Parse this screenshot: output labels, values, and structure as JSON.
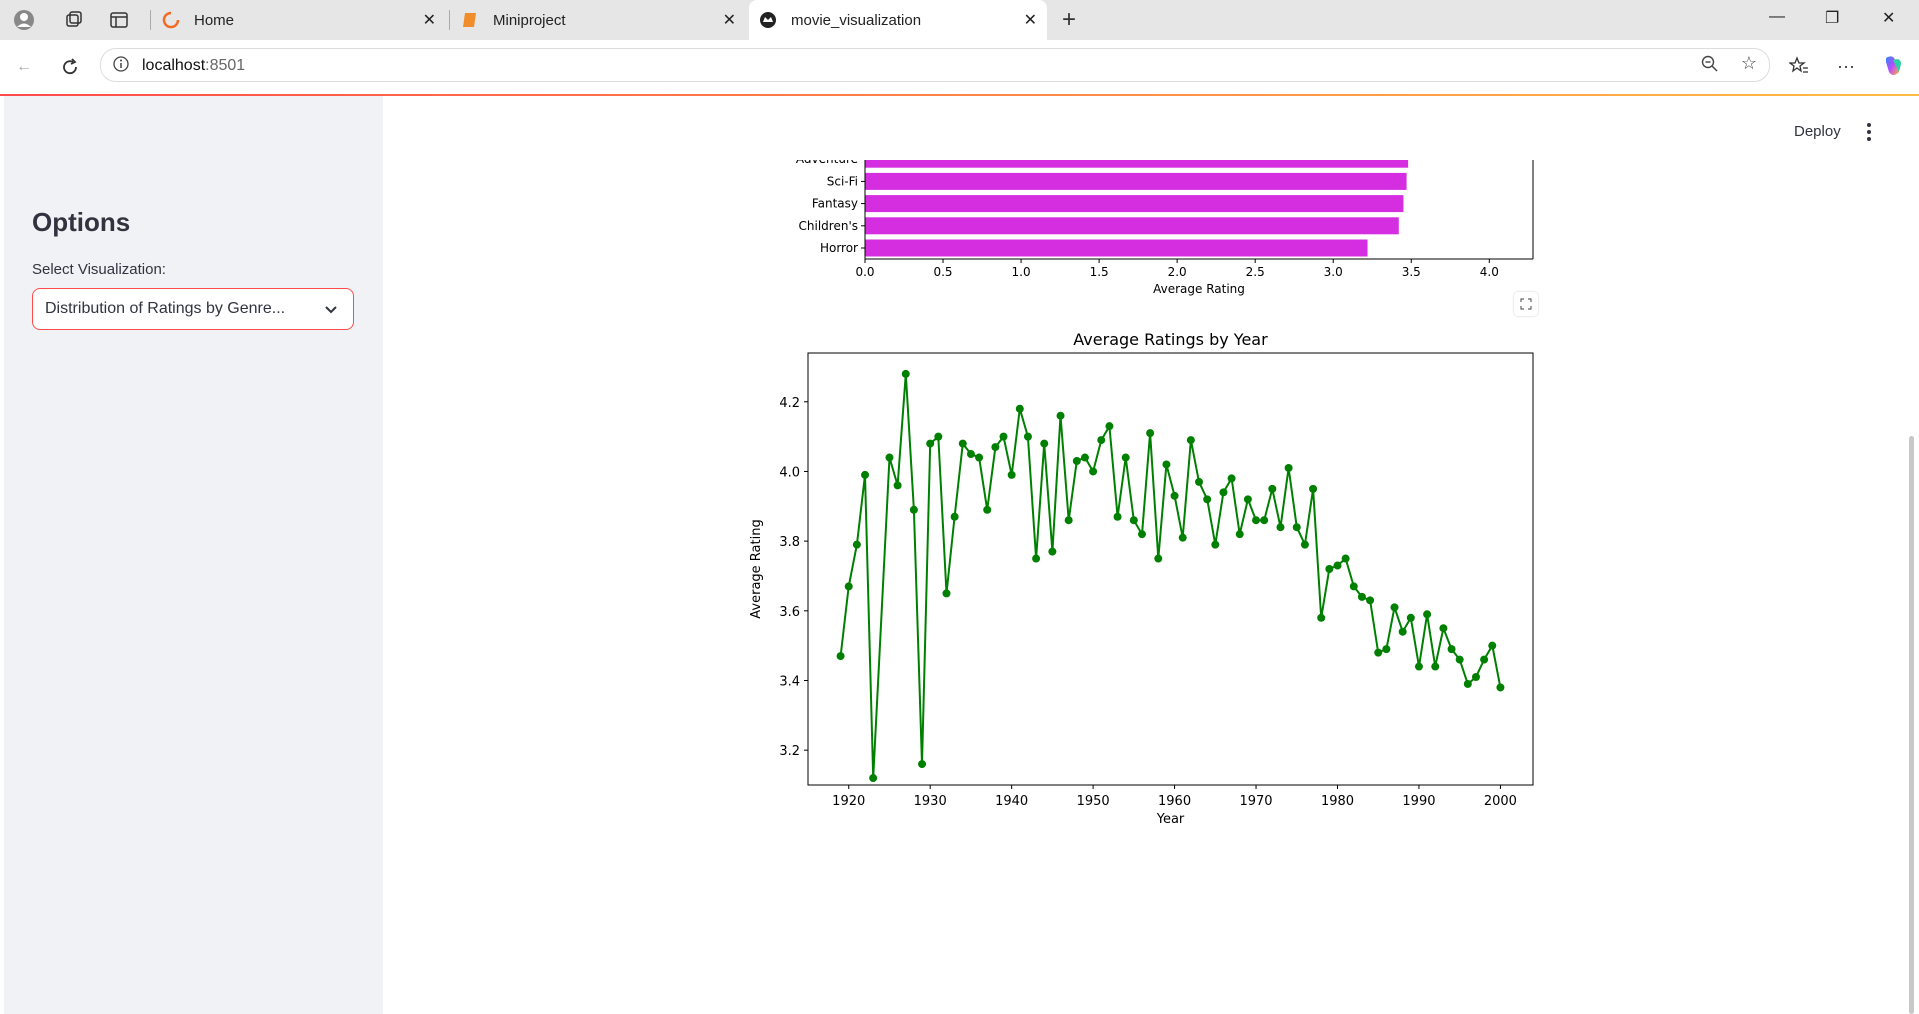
{
  "browser": {
    "tabs": [
      {
        "label": "Home"
      },
      {
        "label": "Miniproject"
      },
      {
        "label": "movie_visualization"
      }
    ],
    "url_host": "localhost",
    "url_port": ":8501"
  },
  "sidebar": {
    "title": "Options",
    "select_label": "Select Visualization:",
    "select_value": "Distribution of Ratings by Genre..."
  },
  "header": {
    "deploy_label": "Deploy"
  },
  "chart_data": [
    {
      "type": "bar",
      "orientation": "horizontal",
      "categories": [
        "Adventure",
        "Sci-Fi",
        "Fantasy",
        "Children's",
        "Horror"
      ],
      "values": [
        3.48,
        3.47,
        3.45,
        3.42,
        3.22
      ],
      "xlabel": "Average Rating",
      "xticks": [
        "0.0",
        "0.5",
        "1.0",
        "1.5",
        "2.0",
        "2.5",
        "3.0",
        "3.5",
        "4.0"
      ],
      "xlim": [
        0,
        4.28
      ],
      "bar_color": "#d42ee0",
      "partially_visible": true
    },
    {
      "type": "line",
      "title": "Average Ratings by Year",
      "xlabel": "Year",
      "ylabel": "Average Rating",
      "xlim": [
        1915,
        2004
      ],
      "ylim": [
        3.1,
        4.34
      ],
      "xticks": [
        "1920",
        "1930",
        "1940",
        "1950",
        "1960",
        "1970",
        "1980",
        "1990",
        "2000"
      ],
      "yticks": [
        "3.2",
        "3.4",
        "3.6",
        "3.8",
        "4.0",
        "4.2"
      ],
      "color": "#008000",
      "marker": "circle",
      "x": [
        1919,
        1920,
        1921,
        1922,
        1923,
        1925,
        1926,
        1927,
        1928,
        1929,
        1930,
        1931,
        1932,
        1933,
        1934,
        1935,
        1936,
        1937,
        1938,
        1939,
        1940,
        1941,
        1942,
        1943,
        1944,
        1945,
        1946,
        1947,
        1948,
        1949,
        1950,
        1951,
        1952,
        1953,
        1954,
        1955,
        1956,
        1957,
        1958,
        1959,
        1960,
        1961,
        1962,
        1963,
        1964,
        1965,
        1966,
        1967,
        1968,
        1969,
        1970,
        1971,
        1972,
        1973,
        1974,
        1975,
        1976,
        1977,
        1978,
        1979,
        1980,
        1981,
        1982,
        1983,
        1984,
        1985,
        1986,
        1987,
        1988,
        1989,
        1990,
        1991,
        1992,
        1993,
        1994,
        1995,
        1996,
        1997,
        1998,
        1999,
        2000
      ],
      "y": [
        3.47,
        3.67,
        3.79,
        3.99,
        3.12,
        4.04,
        3.96,
        4.28,
        3.89,
        3.16,
        4.08,
        4.1,
        3.65,
        3.87,
        4.08,
        4.05,
        4.04,
        3.89,
        4.07,
        4.1,
        3.99,
        4.18,
        4.1,
        3.75,
        4.08,
        3.77,
        4.16,
        3.86,
        4.03,
        4.04,
        4.0,
        4.09,
        4.13,
        3.87,
        4.04,
        3.86,
        3.82,
        4.11,
        3.75,
        4.02,
        3.93,
        3.81,
        4.09,
        3.97,
        3.92,
        3.79,
        3.94,
        3.98,
        3.82,
        3.92,
        3.86,
        3.86,
        3.95,
        3.84,
        4.01,
        3.84,
        3.79,
        3.95,
        3.58,
        3.72,
        3.73,
        3.75,
        3.67,
        3.64,
        3.63,
        3.48,
        3.49,
        3.61,
        3.54,
        3.58,
        3.44,
        3.59,
        3.44,
        3.55,
        3.49,
        3.46,
        3.39,
        3.41,
        3.46,
        3.5,
        3.38
      ]
    }
  ]
}
